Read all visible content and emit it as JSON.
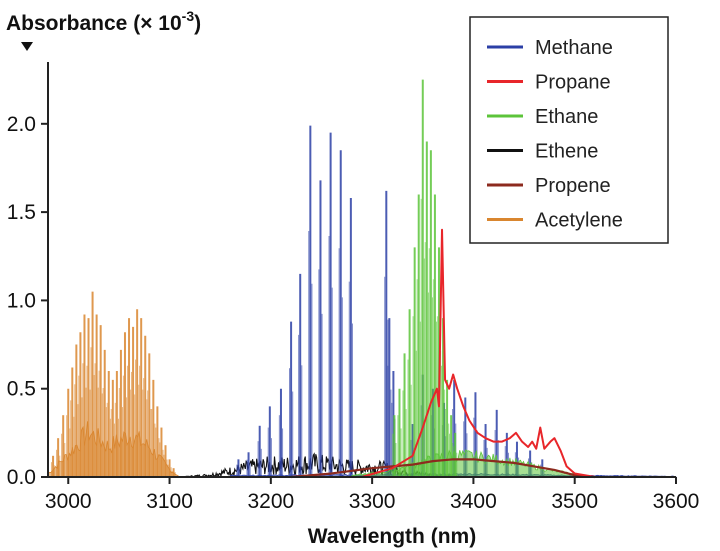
{
  "chart_data": {
    "type": "line",
    "xlabel": "Wavelength (nm)",
    "ylabel_main": "Absorbance (",
    "ylabel_mult": "× 10",
    "ylabel_exp": "-3",
    "ylabel_close": ")",
    "xlim": [
      2980,
      3600
    ],
    "ylim": [
      0,
      2.35
    ],
    "x_ticks": [
      3000,
      3100,
      3200,
      3300,
      3400,
      3500,
      3600
    ],
    "y_ticks": [
      0.0,
      0.5,
      1.0,
      1.5,
      2.0
    ],
    "y_tick_labels": [
      "0.0",
      "0.5",
      "1.0",
      "1.5",
      "2.0"
    ],
    "x_tick_labels": [
      "3000",
      "3100",
      "3200",
      "3300",
      "3400",
      "3500",
      "3600"
    ],
    "grid": false,
    "legend_position": "top-right",
    "colors": {
      "methane": "#2b3fa6",
      "propane": "#e8262a",
      "ethane": "#5cc43a",
      "ethene": "#111111",
      "propene": "#8c2a1e",
      "acetylene": "#d9862f"
    },
    "series": [
      {
        "key": "methane",
        "name": "Methane",
        "type": "stick",
        "peaks": [
          [
            3168,
            0.1
          ],
          [
            3178,
            0.14
          ],
          [
            3189,
            0.29
          ],
          [
            3199,
            0.4
          ],
          [
            3210,
            0.5
          ],
          [
            3220,
            0.88
          ],
          [
            3229,
            1.15
          ],
          [
            3239,
            1.99
          ],
          [
            3249,
            1.68
          ],
          [
            3259,
            1.95
          ],
          [
            3269,
            1.85
          ],
          [
            3279,
            1.58
          ],
          [
            3314,
            1.62
          ],
          [
            3317,
            0.9
          ],
          [
            3321,
            0.6
          ],
          [
            3340,
            0.3
          ],
          [
            3350,
            0.58
          ],
          [
            3360,
            0.5
          ],
          [
            3371,
            0.42
          ],
          [
            3381,
            0.55
          ],
          [
            3392,
            0.45
          ],
          [
            3402,
            0.48
          ],
          [
            3412,
            0.3
          ],
          [
            3423,
            0.38
          ],
          [
            3433,
            0.25
          ],
          [
            3443,
            0.2
          ],
          [
            3456,
            0.15
          ],
          [
            3468,
            0.1
          ]
        ],
        "baseline": [
          [
            3160,
            0.01
          ],
          [
            3320,
            0.015
          ],
          [
            3400,
            0.02
          ],
          [
            3500,
            0.01
          ],
          [
            3600,
            0.005
          ]
        ]
      },
      {
        "key": "propane",
        "name": "Propane",
        "type": "line",
        "points": [
          [
            3290,
            0.0
          ],
          [
            3320,
            0.05
          ],
          [
            3340,
            0.12
          ],
          [
            3350,
            0.28
          ],
          [
            3358,
            0.42
          ],
          [
            3364,
            0.5
          ],
          [
            3366,
            0.4
          ],
          [
            3369,
            1.4
          ],
          [
            3372,
            0.55
          ],
          [
            3376,
            0.5
          ],
          [
            3380,
            0.58
          ],
          [
            3384,
            0.5
          ],
          [
            3390,
            0.4
          ],
          [
            3396,
            0.32
          ],
          [
            3404,
            0.25
          ],
          [
            3412,
            0.22
          ],
          [
            3420,
            0.2
          ],
          [
            3428,
            0.2
          ],
          [
            3436,
            0.22
          ],
          [
            3442,
            0.25
          ],
          [
            3448,
            0.2
          ],
          [
            3454,
            0.17
          ],
          [
            3458,
            0.2
          ],
          [
            3462,
            0.16
          ],
          [
            3466,
            0.28
          ],
          [
            3470,
            0.16
          ],
          [
            3476,
            0.2
          ],
          [
            3480,
            0.22
          ],
          [
            3486,
            0.15
          ],
          [
            3492,
            0.06
          ],
          [
            3500,
            0.02
          ],
          [
            3520,
            0.0
          ],
          [
            3600,
            0.0
          ]
        ]
      },
      {
        "key": "ethane",
        "name": "Ethane",
        "type": "stick",
        "peaks": [
          [
            3322,
            0.35
          ],
          [
            3327,
            0.5
          ],
          [
            3332,
            0.7
          ],
          [
            3337,
            0.95
          ],
          [
            3342,
            1.3
          ],
          [
            3346,
            1.6
          ],
          [
            3350,
            2.25
          ],
          [
            3354,
            1.9
          ],
          [
            3358,
            1.85
          ],
          [
            3362,
            1.6
          ],
          [
            3366,
            1.3
          ],
          [
            3370,
            0.9
          ],
          [
            3374,
            0.55
          ],
          [
            3378,
            0.35
          ],
          [
            3382,
            0.25
          ]
        ],
        "baseline": [
          [
            3280,
            0.01
          ],
          [
            3320,
            0.04
          ],
          [
            3340,
            0.08
          ],
          [
            3360,
            0.12
          ],
          [
            3380,
            0.15
          ],
          [
            3400,
            0.14
          ],
          [
            3420,
            0.12
          ],
          [
            3440,
            0.1
          ],
          [
            3460,
            0.07
          ],
          [
            3480,
            0.04
          ],
          [
            3500,
            0.02
          ],
          [
            3520,
            0.0
          ]
        ]
      },
      {
        "key": "ethene",
        "name": "Ethene",
        "type": "noisy",
        "points": [
          [
            3110,
            0.0
          ],
          [
            3140,
            0.01
          ],
          [
            3160,
            0.03
          ],
          [
            3180,
            0.05
          ],
          [
            3200,
            0.06
          ],
          [
            3220,
            0.06
          ],
          [
            3240,
            0.07
          ],
          [
            3260,
            0.06
          ],
          [
            3280,
            0.05
          ],
          [
            3300,
            0.05
          ],
          [
            3320,
            0.04
          ],
          [
            3340,
            0.02
          ],
          [
            3360,
            0.01
          ],
          [
            3400,
            0.0
          ]
        ]
      },
      {
        "key": "propene",
        "name": "Propene",
        "type": "line",
        "points": [
          [
            3220,
            0.0
          ],
          [
            3260,
            0.02
          ],
          [
            3300,
            0.05
          ],
          [
            3320,
            0.06
          ],
          [
            3340,
            0.07
          ],
          [
            3360,
            0.09
          ],
          [
            3380,
            0.1
          ],
          [
            3400,
            0.1
          ],
          [
            3420,
            0.09
          ],
          [
            3440,
            0.08
          ],
          [
            3460,
            0.06
          ],
          [
            3480,
            0.04
          ],
          [
            3500,
            0.01
          ],
          [
            3520,
            0.0
          ]
        ]
      },
      {
        "key": "acetylene",
        "name": "Acetylene",
        "type": "stick",
        "peaks": [
          [
            2985,
            0.12
          ],
          [
            2990,
            0.22
          ],
          [
            2995,
            0.35
          ],
          [
            3000,
            0.5
          ],
          [
            3004,
            0.62
          ],
          [
            3008,
            0.75
          ],
          [
            3012,
            0.82
          ],
          [
            3016,
            0.92
          ],
          [
            3020,
            0.9
          ],
          [
            3024,
            1.05
          ],
          [
            3028,
            0.92
          ],
          [
            3032,
            0.86
          ],
          [
            3036,
            0.72
          ],
          [
            3040,
            0.6
          ],
          [
            3044,
            0.55
          ],
          [
            3048,
            0.6
          ],
          [
            3052,
            0.72
          ],
          [
            3056,
            0.82
          ],
          [
            3060,
            0.9
          ],
          [
            3064,
            0.85
          ],
          [
            3068,
            0.95
          ],
          [
            3072,
            0.9
          ],
          [
            3076,
            0.8
          ],
          [
            3080,
            0.7
          ],
          [
            3084,
            0.55
          ],
          [
            3088,
            0.4
          ],
          [
            3092,
            0.28
          ],
          [
            3096,
            0.18
          ],
          [
            3100,
            0.1
          ],
          [
            3104,
            0.05
          ]
        ],
        "baseline": [
          [
            2980,
            0.02
          ],
          [
            3000,
            0.15
          ],
          [
            3020,
            0.3
          ],
          [
            3040,
            0.2
          ],
          [
            3060,
            0.28
          ],
          [
            3080,
            0.2
          ],
          [
            3100,
            0.05
          ],
          [
            3110,
            0.0
          ]
        ]
      }
    ]
  }
}
